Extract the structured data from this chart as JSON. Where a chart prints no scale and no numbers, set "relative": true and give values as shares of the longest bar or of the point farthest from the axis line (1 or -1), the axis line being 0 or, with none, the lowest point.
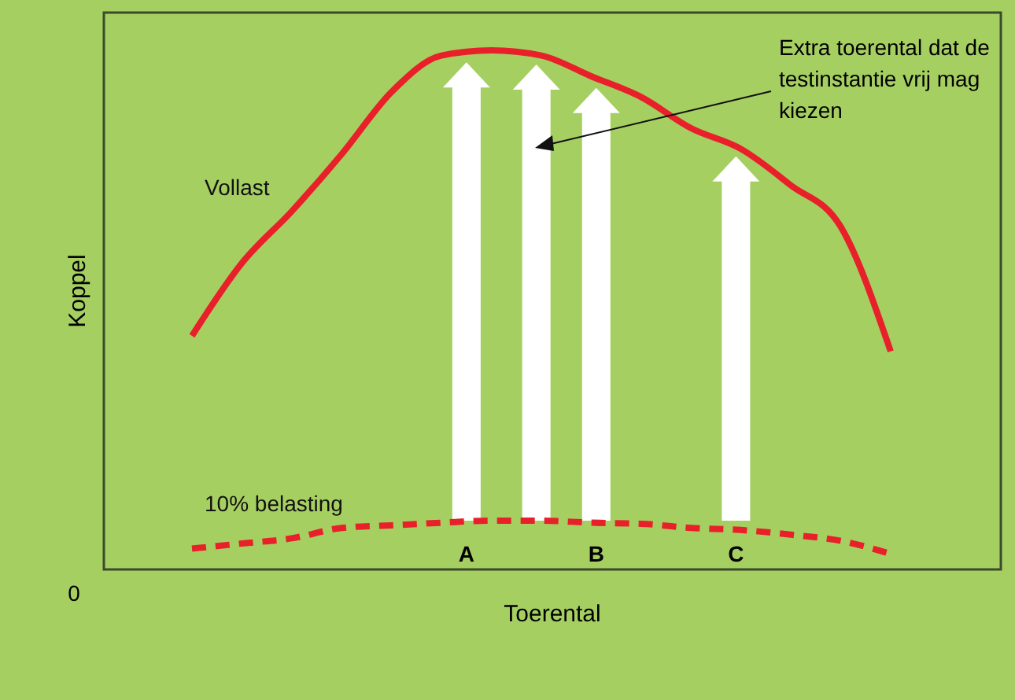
{
  "chart_data": {
    "type": "line",
    "relative": true,
    "xlabel": "Toerental",
    "ylabel": "Koppel",
    "categories": [
      null,
      null,
      null,
      null,
      null,
      null,
      null,
      null,
      null,
      null,
      null,
      null,
      null,
      null,
      null
    ],
    "series": [
      {
        "name": "Vollast",
        "color": "#e8202a",
        "line_style": "solid",
        "values": [
          0.45,
          0.59,
          0.69,
          0.8,
          0.92,
          0.99,
          1,
          0.99,
          0.95,
          0.91,
          0.85,
          0.81,
          0.74,
          0.66,
          0.42
        ]
      },
      {
        "name": "10% belasting",
        "color": "#e8202a",
        "line_style": "dashed",
        "values": [
          0.04,
          0.05,
          0.06,
          0.08,
          0.085,
          0.09,
          0.094,
          0.094,
          0.09,
          0.088,
          0.08,
          0.076,
          0.067,
          0.055,
          0.03
        ]
      }
    ],
    "annotations": [
      "0",
      "A",
      "B",
      "C",
      "Extra toerental dat de testinstantie vrij mag kiezen"
    ],
    "marker": "none"
  }
}
